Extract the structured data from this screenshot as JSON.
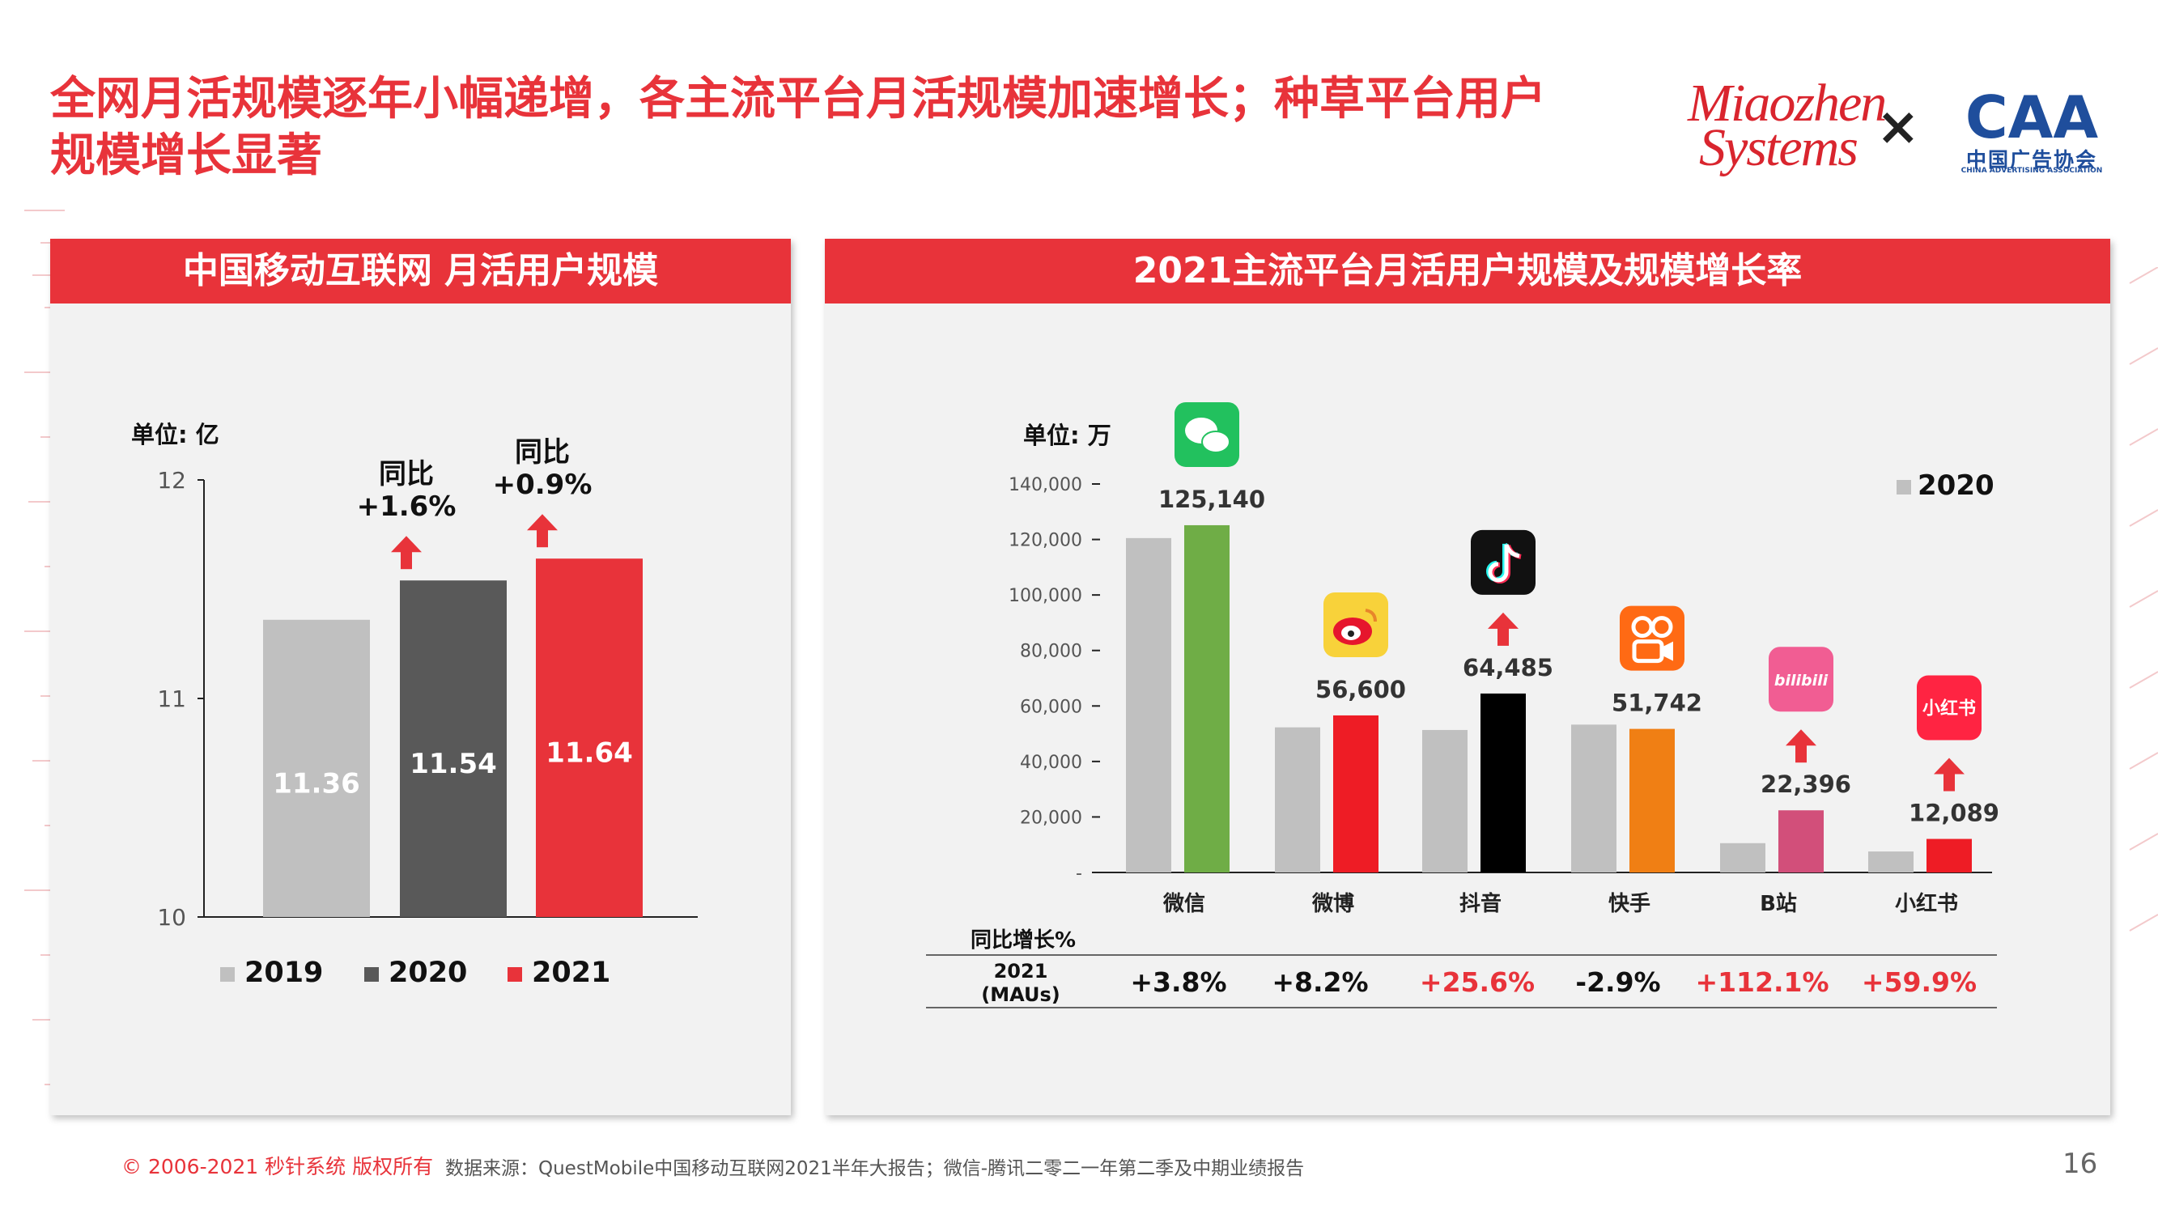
{
  "title": "全网月活规模逐年小幅递增，各主流平台月活规模加速增长；种草平台用户规模增长显著",
  "logos": {
    "miaozhen_line1": "Miaozhen",
    "miaozhen_line2": "Systems",
    "times": "×",
    "caa_mark": "CAA",
    "caa_cn": "中国广告协会",
    "caa_en": "CHINA ADVERTISING ASSOCIATION"
  },
  "chart_data": [
    {
      "type": "bar",
      "title": "中国移动互联网 月活用户规模",
      "unit": "单位: 亿",
      "categories": [
        "2019",
        "2020",
        "2021"
      ],
      "values": [
        11.36,
        11.54,
        11.64
      ],
      "value_labels": [
        "11.36",
        "11.54",
        "11.64"
      ],
      "colors": [
        "#c0c0c0",
        "#595959",
        "#e8333a"
      ],
      "ylim": [
        10,
        12
      ],
      "yticks": [
        "10",
        "11",
        "12"
      ],
      "legend": [
        "2019",
        "2020",
        "2021"
      ],
      "annotations": [
        {
          "line1": "同比",
          "line2": "+1.6%",
          "bar": 1
        },
        {
          "line1": "同比",
          "line2": "+0.9%",
          "bar": 2
        }
      ]
    },
    {
      "type": "bar",
      "title": "2021主流平台月活用户规模及规模增长率",
      "unit": "单位: 万",
      "categories": [
        "微信",
        "微博",
        "抖音",
        "快手",
        "B站",
        "小红书"
      ],
      "series": [
        {
          "name": "2020",
          "values": [
            120500,
            52300,
            51350,
            53280,
            10560,
            7560
          ]
        },
        {
          "name": "2021",
          "values": [
            125140,
            56600,
            64485,
            51742,
            22396,
            12089
          ]
        }
      ],
      "value_labels": [
        "125,140",
        "56,600",
        "64,485",
        "51,742",
        "22,396",
        "12,089"
      ],
      "colors_2021": [
        "#6fad46",
        "#ee1c25",
        "#000000",
        "#f07f14",
        "#d24f7a",
        "#ee1c25"
      ],
      "color_2020": "#c0c0c0",
      "ylim": [
        0,
        140000
      ],
      "yticks": [
        "-",
        "20,000",
        "40,000",
        "60,000",
        "80,000",
        "100,000",
        "120,000",
        "140,000"
      ],
      "legend": [
        "2020"
      ],
      "up_arrows": [
        false,
        false,
        true,
        false,
        true,
        true
      ],
      "icon_labels": {
        "bilibili": "bilibili",
        "xiaohongshu": "小红书"
      },
      "yoy_header": "同比增长%",
      "yoy_row_label_1": "2021",
      "yoy_row_label_2": "(MAUs)",
      "yoy_values": [
        "+3.8%",
        "+8.2%",
        "+25.6%",
        "-2.9%",
        "+112.1%",
        "+59.9%"
      ],
      "yoy_highlight": [
        false,
        false,
        true,
        false,
        true,
        true
      ]
    }
  ],
  "footer": {
    "copyright": "© 2006-2021 秒针系统 版权所有",
    "source": "数据来源：QuestMobile中国移动互联网2021半年大报告；微信-腾讯二零二一年第二季及中期业绩报告",
    "page": "16"
  }
}
